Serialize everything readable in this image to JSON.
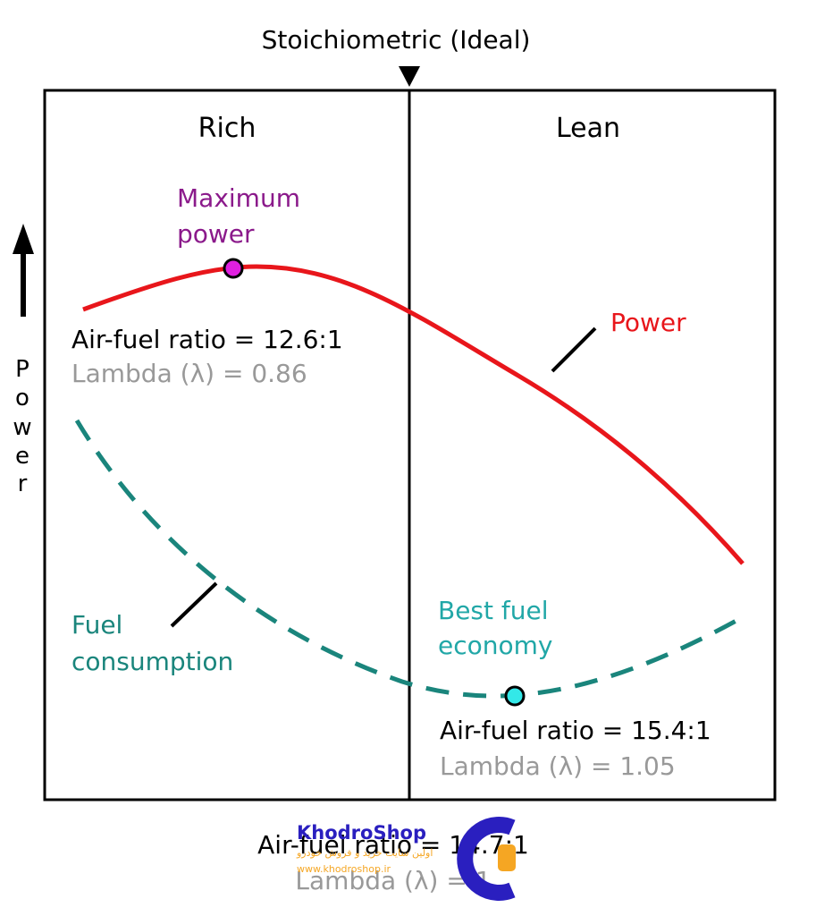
{
  "top_label": "Stoichiometric (Ideal)",
  "regions": {
    "rich": "Rich",
    "lean": "Lean"
  },
  "y_axis_label": [
    "P",
    "o",
    "w",
    "e",
    "r"
  ],
  "power": {
    "curve_label": "Power",
    "max_label_line1": "Maximum",
    "max_label_line2": "power",
    "afr": "Air-fuel ratio = 12.6:1",
    "lambda": "Lambda (λ) = 0.86"
  },
  "fuel": {
    "curve_label_line1": "Fuel",
    "curve_label_line2": "consumption",
    "best_label_line1": "Best fuel",
    "best_label_line2": "economy",
    "afr": "Air-fuel ratio = 15.4:1",
    "lambda": "Lambda (λ) = 1.05"
  },
  "stoich": {
    "afr": "Air-fuel ratio = 14.7:1",
    "lambda": "Lambda (λ) = 1"
  },
  "watermark": {
    "brand": "KhodroShop",
    "tagline": "اولین سایت خرید و فروش خودرو",
    "url": "www.khodroshop.ir"
  },
  "colors": {
    "power": "#e8161b",
    "fuel": "#1a857c",
    "max_marker": "#e020e0",
    "best_marker": "#33e8e8",
    "lambda_text": "#999999",
    "max_text": "#8b1a8b",
    "best_text": "#21a7a7"
  }
}
